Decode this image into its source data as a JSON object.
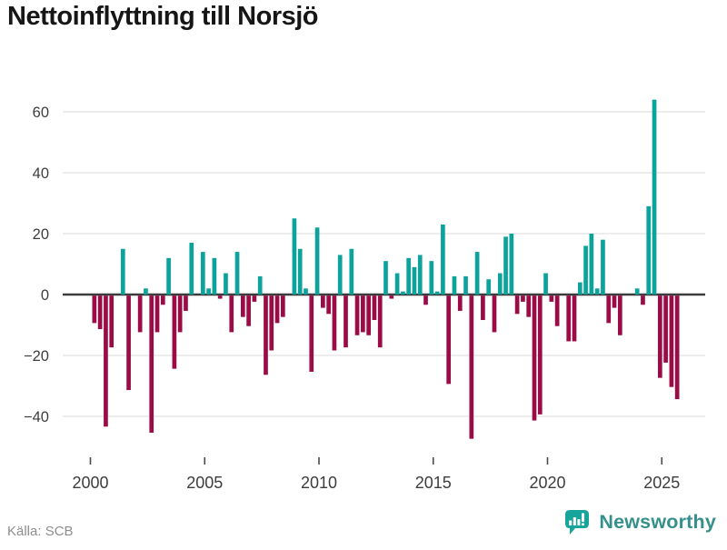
{
  "title": "Nettoinflyttning till Norsjö",
  "source": "Källa: SCB",
  "brand": {
    "name": "Newsworthy"
  },
  "colors": {
    "positive_bar": "#0ba39c",
    "negative_bar": "#9b0c46",
    "zero_line": "#3c3c3c",
    "gridline": "#e2e2e2",
    "axis_label": "#3d3d3d",
    "title_text": "#161616",
    "source_text": "#8e8e8e",
    "brand_teal": "#16a49b"
  },
  "chart_data": {
    "type": "bar",
    "title": "Nettoinflyttning till Norsjö",
    "xlabel": "",
    "ylabel": "",
    "frequency": "quarterly",
    "start_year": 2000,
    "start_quarter": 1,
    "values": [
      -9,
      -11,
      -43,
      -17,
      0,
      15,
      -31,
      0,
      -12,
      2,
      -45,
      -12,
      -3,
      12,
      -24,
      -12,
      -5,
      17,
      0,
      14,
      2,
      12,
      -1,
      7,
      -12,
      14,
      -7,
      -10,
      -2,
      6,
      -26,
      -18,
      -9,
      -7,
      0,
      25,
      15,
      2,
      -25,
      22,
      -4,
      -6,
      -18,
      13,
      -17,
      15,
      -13,
      -12,
      -13,
      -8,
      -17,
      11,
      -1,
      7,
      1,
      12,
      9,
      13,
      -3,
      11,
      1,
      23,
      -29,
      6,
      -5,
      6,
      -47,
      14,
      -8,
      5,
      -12,
      7,
      19,
      20,
      -6,
      -2,
      -7,
      -41,
      -39,
      7,
      -2,
      -10,
      0,
      -15,
      -15,
      4,
      16,
      20,
      2,
      18,
      -9,
      -4,
      -13,
      0,
      0,
      2,
      -3,
      29,
      64,
      -27,
      -22,
      -30,
      -34
    ],
    "yticks": [
      60,
      40,
      20,
      0,
      -20,
      -40
    ],
    "ytick_labels": [
      "60",
      "40",
      "20",
      "0",
      "−20",
      "−40"
    ],
    "xticks": [
      2000,
      2005,
      2010,
      2015,
      2020,
      2025
    ],
    "ylim": [
      -47,
      64
    ],
    "grid": true,
    "legend": false
  }
}
